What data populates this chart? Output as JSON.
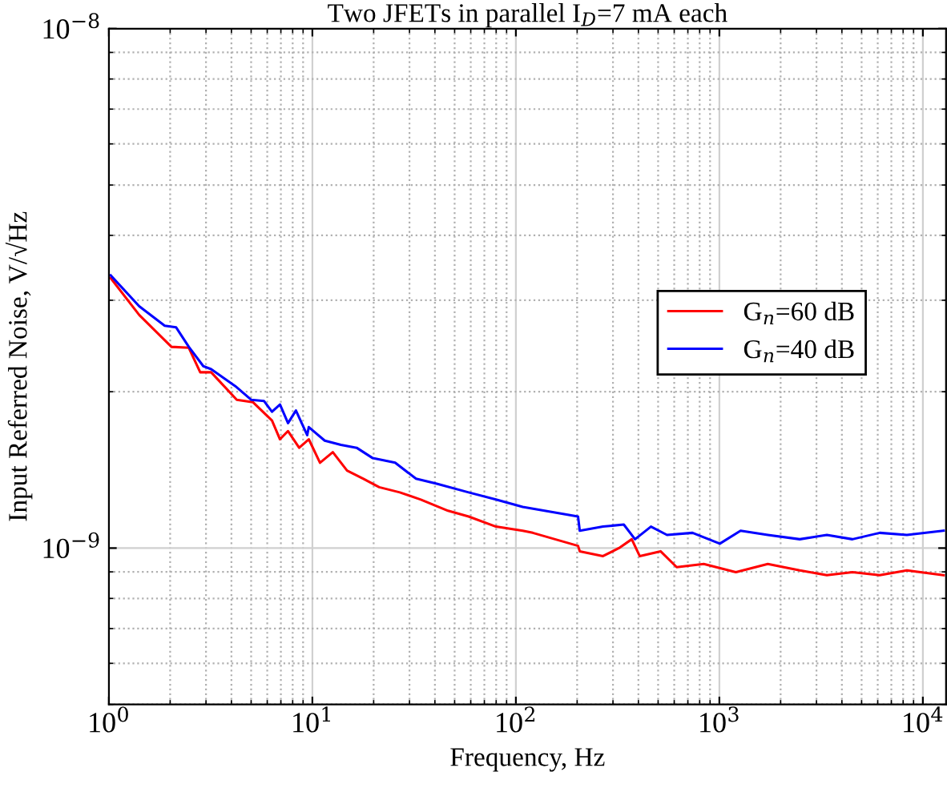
{
  "chart_data": {
    "type": "line",
    "title": "Two JFETs in parallel I$_{D}$=7 mA each",
    "xlabel": "Frequency, Hz",
    "ylabel": "Input Referred Noise, V/√Hz",
    "log": "xy",
    "grid": true,
    "legend": "right",
    "line_style": "solid",
    "marker": "none",
    "xlim": [
      1,
      13000
    ],
    "ylim": [
      5e-10,
      1e-08
    ],
    "xticks": [
      {
        "value": 1,
        "label": "10$^{0}$"
      },
      {
        "value": 10,
        "label": "10$^{1}$"
      },
      {
        "value": 100,
        "label": "10$^{2}$"
      },
      {
        "value": 1000,
        "label": "10$^{3}$"
      },
      {
        "value": 10000,
        "label": "10$^{4}$"
      }
    ],
    "yticks": [
      {
        "value": 1e-09,
        "label": "10$^{−9}$"
      },
      {
        "value": 1e-08,
        "label": "10$^{−8}$"
      }
    ],
    "series": [
      {
        "name": "G$_{n}$=60 dB",
        "color": "#ff0000",
        "x": [
          1.02,
          1.41,
          2.03,
          2.47,
          2.81,
          3.18,
          4.25,
          5.1,
          6.33,
          6.93,
          7.59,
          8.61,
          9.6,
          10.9,
          12.6,
          14.8,
          17.8,
          21.3,
          26.9,
          34.1,
          46.4,
          58.6,
          79.8,
          108,
          121,
          202,
          206,
          268,
          321,
          371,
          406,
          514,
          617,
          838,
          1205,
          1730,
          2483,
          3375,
          4508,
          6137,
          8345,
          12650
        ],
        "values": [
          3.31e-09,
          2.81e-09,
          2.44e-09,
          2.43e-09,
          2.18e-09,
          2.18e-09,
          1.93e-09,
          1.91e-09,
          1.76e-09,
          1.62e-09,
          1.68e-09,
          1.56e-09,
          1.62e-09,
          1.46e-09,
          1.53e-09,
          1.41e-09,
          1.36e-09,
          1.31e-09,
          1.28e-09,
          1.24e-09,
          1.18e-09,
          1.15e-09,
          1.1e-09,
          1.08e-09,
          1.07e-09,
          1.01e-09,
          9.86e-10,
          9.65e-10,
          1e-09,
          1.04e-09,
          9.65e-10,
          9.86e-10,
          9.19e-10,
          9.32e-10,
          8.99e-10,
          9.32e-10,
          9.06e-10,
          8.87e-10,
          8.99e-10,
          8.87e-10,
          9.06e-10,
          8.87e-10
        ]
      },
      {
        "name": "G$_{n}$=40 dB",
        "color": "#0000ff",
        "x": [
          1.02,
          1.41,
          1.88,
          2.14,
          2.47,
          2.91,
          3.18,
          4.18,
          5.0,
          5.78,
          6.33,
          6.93,
          7.59,
          8.3,
          9.43,
          9.6,
          11.5,
          13.8,
          16.5,
          19.8,
          25.5,
          32.3,
          40.8,
          58.6,
          79.8,
          108,
          202,
          206,
          268,
          339,
          385,
          461,
          553,
          738,
          1005,
          1271,
          1730,
          2483,
          3375,
          4508,
          6137,
          8345,
          12650
        ],
        "values": [
          3.35e-09,
          2.92e-09,
          2.68e-09,
          2.66e-09,
          2.44e-09,
          2.24e-09,
          2.21e-09,
          2.05e-09,
          1.93e-09,
          1.92e-09,
          1.83e-09,
          1.89e-09,
          1.74e-09,
          1.84e-09,
          1.65e-09,
          1.71e-09,
          1.61e-09,
          1.58e-09,
          1.56e-09,
          1.49e-09,
          1.46e-09,
          1.36e-09,
          1.33e-09,
          1.28e-09,
          1.24e-09,
          1.2e-09,
          1.15e-09,
          1.08e-09,
          1.1e-09,
          1.11e-09,
          1.04e-09,
          1.1e-09,
          1.06e-09,
          1.07e-09,
          1.02e-09,
          1.08e-09,
          1.06e-09,
          1.04e-09,
          1.06e-09,
          1.04e-09,
          1.07e-09,
          1.06e-09,
          1.08e-09
        ]
      }
    ]
  }
}
